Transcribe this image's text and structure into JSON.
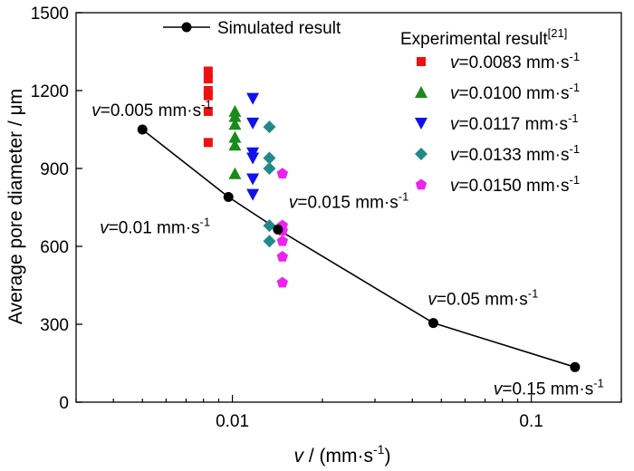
{
  "chart_data": {
    "type": "scatter",
    "title": "",
    "xlabel": {
      "var": "v",
      "unit": " / (mm·s",
      "sup": "-1",
      "close": ")"
    },
    "ylabel": "Average pore diameter / μm",
    "x_scale": "log",
    "xlim": [
      0.003,
      0.2
    ],
    "ylim": [
      0,
      1500
    ],
    "x_ticks": [
      {
        "value": 0.01,
        "label": "0.01"
      },
      {
        "value": 0.1,
        "label": "0.1"
      }
    ],
    "y_ticks": [
      {
        "value": 0,
        "label": "0"
      },
      {
        "value": 300,
        "label": "300"
      },
      {
        "value": 600,
        "label": "600"
      },
      {
        "value": 900,
        "label": "900"
      },
      {
        "value": 1200,
        "label": "1200"
      },
      {
        "value": 1500,
        "label": "1500"
      }
    ],
    "legend": {
      "simulated": "Simulated result",
      "experimental_title": "Experimental result",
      "experimental_ref": "[21]"
    },
    "simulated": {
      "color": "#000000",
      "points": [
        {
          "x": 0.005,
          "y": 1050,
          "label_v": "v",
          "label_val": "=0.005 mm·s",
          "label_sup": "-1"
        },
        {
          "x": 0.0097,
          "y": 790,
          "label_v": "v",
          "label_val": "=0.01 mm·s",
          "label_sup": "-1"
        },
        {
          "x": 0.0142,
          "y": 665,
          "label_v": "v",
          "label_val": "=0.015 mm·s",
          "label_sup": "-1"
        },
        {
          "x": 0.047,
          "y": 305,
          "label_v": "v",
          "label_val": "=0.05 mm·s",
          "label_sup": "-1"
        },
        {
          "x": 0.14,
          "y": 135,
          "label_v": "v",
          "label_val": "=0.15 mm·s",
          "label_sup": "-1"
        }
      ]
    },
    "series": [
      {
        "var": "v",
        "name": "=0.0083 mm·s",
        "sup": "-1",
        "marker": "square",
        "color": "#ee1111",
        "x": 0.0083,
        "y": [
          1275,
          1245,
          1200,
          1180,
          1120,
          1000
        ]
      },
      {
        "var": "v",
        "name": "=0.0100 mm·s",
        "sup": "-1",
        "marker": "triangle-up",
        "color": "#1a8a1a",
        "x": 0.0102,
        "y": [
          1120,
          1100,
          1070,
          1020,
          990,
          880
        ]
      },
      {
        "var": "v",
        "name": "=0.0117 mm·s",
        "sup": "-1",
        "marker": "triangle-down",
        "color": "#1111ee",
        "x": 0.0117,
        "y": [
          1170,
          1075,
          960,
          940,
          860,
          800
        ]
      },
      {
        "var": "v",
        "name": "=0.0133 mm·s",
        "sup": "-1",
        "marker": "diamond",
        "color": "#208a8a",
        "x": 0.0133,
        "y": [
          1060,
          940,
          900,
          680,
          620
        ]
      },
      {
        "var": "v",
        "name": "=0.0150 mm·s",
        "sup": "-1",
        "marker": "pentagon",
        "color": "#ee22ee",
        "x": 0.0147,
        "y": [
          880,
          680,
          660,
          620,
          560,
          460
        ]
      }
    ]
  }
}
